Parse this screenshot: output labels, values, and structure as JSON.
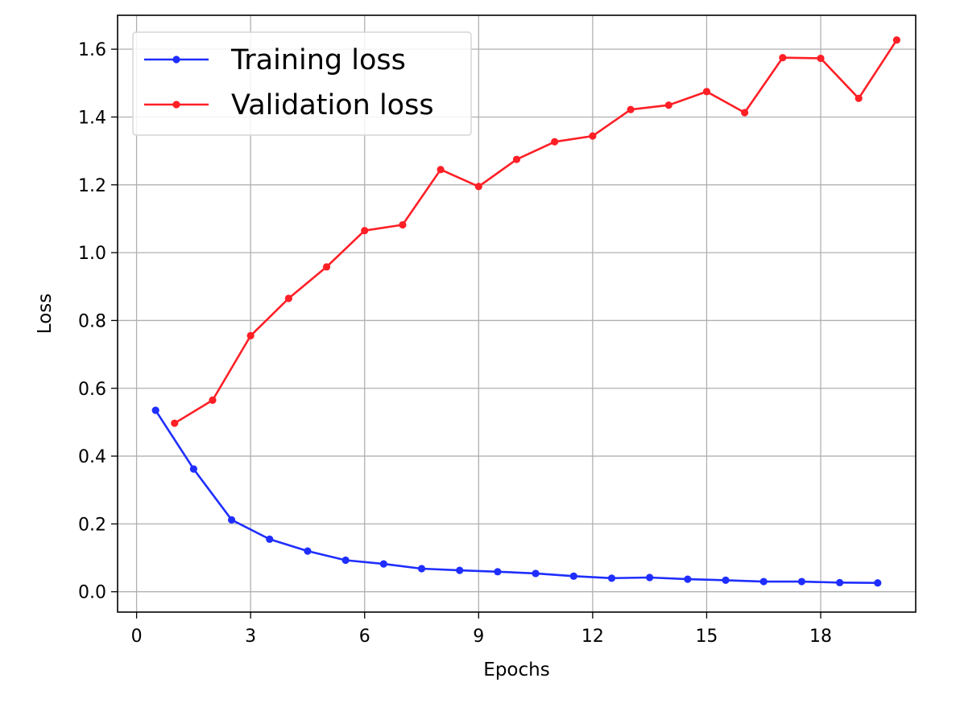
{
  "chart_data": {
    "type": "line",
    "title": "",
    "xlabel": "Epochs",
    "ylabel": "Loss",
    "xlim": [
      -0.5,
      20.5
    ],
    "ylim": [
      -0.06,
      1.7
    ],
    "xticks": [
      0,
      3,
      6,
      9,
      12,
      15,
      18
    ],
    "yticks": [
      0.0,
      0.2,
      0.4,
      0.6,
      0.8,
      1.0,
      1.2,
      1.4,
      1.6
    ],
    "xtick_labels": [
      "0",
      "3",
      "6",
      "9",
      "12",
      "15",
      "18"
    ],
    "ytick_labels": [
      "0.0",
      "0.2",
      "0.4",
      "0.6",
      "0.8",
      "1.0",
      "1.2",
      "1.4",
      "1.6"
    ],
    "grid": true,
    "legend_position": "top-left",
    "series": [
      {
        "name": "Training loss",
        "color": "#1f2eff",
        "x": [
          0.5,
          1.5,
          2.5,
          3.5,
          4.5,
          5.5,
          6.5,
          7.5,
          8.5,
          9.5,
          10.5,
          11.5,
          12.5,
          13.5,
          14.5,
          15.5,
          16.5,
          17.5,
          18.5,
          19.5
        ],
        "y": [
          0.535,
          0.362,
          0.212,
          0.155,
          0.12,
          0.093,
          0.082,
          0.068,
          0.063,
          0.059,
          0.054,
          0.046,
          0.04,
          0.042,
          0.037,
          0.034,
          0.03,
          0.03,
          0.027,
          0.026
        ]
      },
      {
        "name": "Validation loss",
        "color": "#ff1f26",
        "x": [
          1,
          2,
          3,
          4,
          5,
          6,
          7,
          8,
          9,
          10,
          11,
          12,
          13,
          14,
          15,
          16,
          17,
          18,
          19,
          20
        ],
        "y": [
          0.497,
          0.565,
          0.755,
          0.865,
          0.958,
          1.065,
          1.082,
          1.245,
          1.195,
          1.275,
          1.327,
          1.344,
          1.422,
          1.435,
          1.475,
          1.413,
          1.575,
          1.573,
          1.455,
          1.627
        ]
      }
    ]
  }
}
